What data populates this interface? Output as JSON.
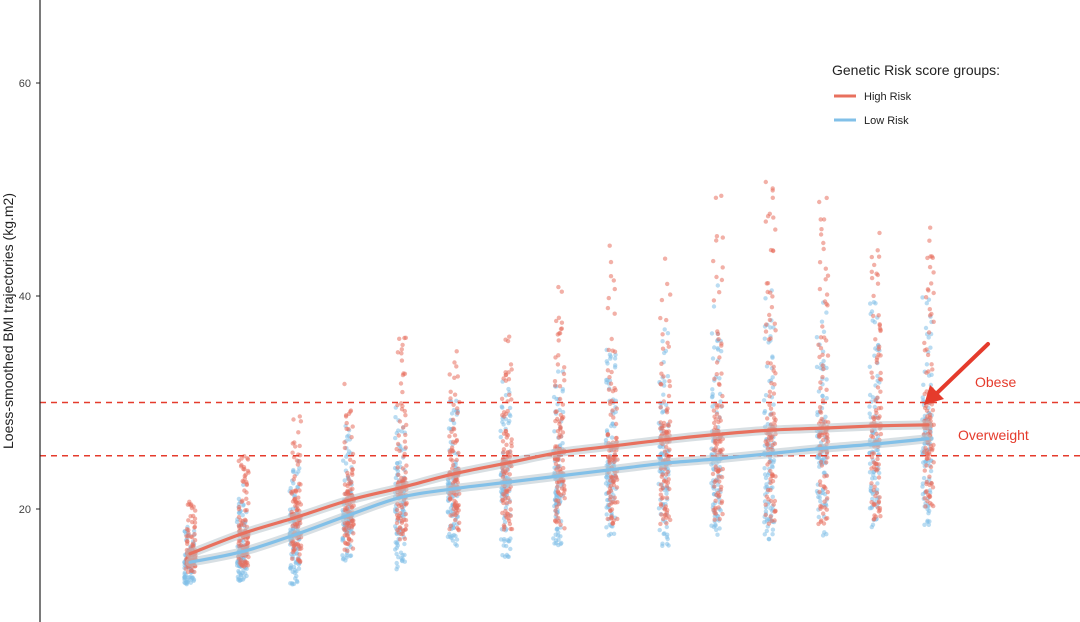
{
  "chart_data": {
    "type": "line",
    "title": "",
    "xlabel": "",
    "ylabel": "Loess-smoothed BMI trajectories (kg.m2)",
    "ylim": [
      11.5,
      68.5
    ],
    "yticks": [
      20,
      40,
      60
    ],
    "grid": false,
    "legend": {
      "title": "Genetic Risk score groups:",
      "placement": "top-right",
      "items": [
        {
          "name": "High Risk",
          "color": "#E8705E"
        },
        {
          "name": "Low Risk",
          "color": "#82C0E8"
        }
      ]
    },
    "x": [
      1,
      2,
      3,
      4,
      5,
      6,
      7,
      8,
      9,
      10,
      11,
      12,
      13,
      14,
      15
    ],
    "series": [
      {
        "name": "High Risk",
        "color": "#E8705E",
        "values": [
          15.8,
          17.7,
          19.2,
          20.8,
          22.0,
          23.3,
          24.3,
          25.3,
          25.9,
          26.5,
          27.0,
          27.4,
          27.6,
          27.8,
          27.9
        ]
      },
      {
        "name": "Low Risk",
        "color": "#82C0E8",
        "values": [
          15.0,
          16.0,
          17.6,
          19.4,
          21.1,
          21.9,
          22.5,
          23.1,
          23.7,
          24.3,
          24.7,
          25.2,
          25.7,
          26.1,
          26.6
        ]
      }
    ],
    "reference_lines": [
      {
        "label": "Obese",
        "value": 30,
        "color": "#E53B2C",
        "style": "dashed"
      },
      {
        "label": "Overweight",
        "value": 25,
        "color": "#E53B2C",
        "style": "dashed"
      }
    ],
    "scatter_clouds": [
      {
        "x": 1,
        "high": [
          15.8,
          14.0,
          21.0
        ],
        "low": [
          15.0,
          12.8,
          18.5
        ]
      },
      {
        "x": 2,
        "high": [
          17.7,
          14.5,
          25.0
        ],
        "low": [
          16.0,
          13.2,
          22.5
        ]
      },
      {
        "x": 3,
        "high": [
          19.2,
          15.0,
          29.0
        ],
        "low": [
          17.6,
          12.5,
          24.5
        ]
      },
      {
        "x": 4,
        "high": [
          20.8,
          16.0,
          32.0
        ],
        "low": [
          19.4,
          14.8,
          28.0
        ]
      },
      {
        "x": 5,
        "high": [
          22.0,
          17.0,
          37.0
        ],
        "low": [
          21.1,
          14.2,
          30.0
        ]
      },
      {
        "x": 6,
        "high": [
          23.3,
          18.0,
          35.5
        ],
        "low": [
          21.9,
          16.5,
          31.5
        ]
      },
      {
        "x": 7,
        "high": [
          24.3,
          18.0,
          37.0
        ],
        "low": [
          22.5,
          15.0,
          32.0
        ]
      },
      {
        "x": 8,
        "high": [
          25.3,
          18.0,
          42.0
        ],
        "low": [
          23.1,
          16.5,
          33.0
        ]
      },
      {
        "x": 9,
        "high": [
          25.9,
          18.5,
          45.5
        ],
        "low": [
          23.7,
          17.5,
          35.0
        ]
      },
      {
        "x": 10,
        "high": [
          26.5,
          18.5,
          44.5
        ],
        "low": [
          24.3,
          16.5,
          38.0
        ]
      },
      {
        "x": 11,
        "high": [
          27.0,
          18.5,
          49.5
        ],
        "low": [
          24.7,
          17.5,
          41.0
        ]
      },
      {
        "x": 12,
        "high": [
          27.4,
          18.5,
          51.5
        ],
        "low": [
          25.2,
          17.0,
          42.0
        ]
      },
      {
        "x": 13,
        "high": [
          27.6,
          18.5,
          49.5
        ],
        "low": [
          25.7,
          17.5,
          40.0
        ]
      },
      {
        "x": 14,
        "high": [
          27.8,
          19.0,
          47.5
        ],
        "low": [
          26.1,
          18.0,
          39.5
        ]
      },
      {
        "x": 15,
        "high": [
          27.9,
          20.0,
          46.5
        ],
        "low": [
          26.6,
          18.5,
          40.0
        ]
      }
    ]
  }
}
